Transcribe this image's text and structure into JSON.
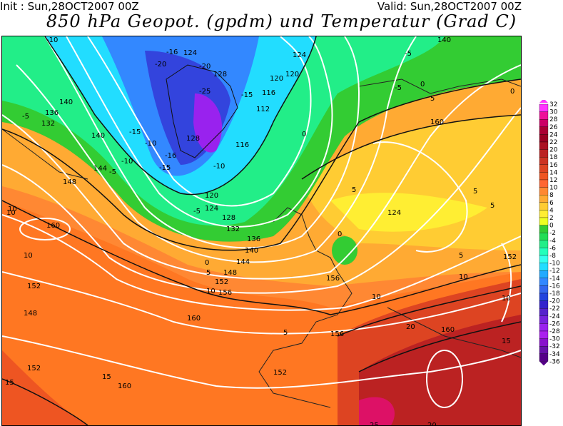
{
  "header": {
    "init": "Init : Sun,28OCT2007 00Z",
    "valid": "Valid: Sun,28OCT2007 00Z",
    "title": "850 hPa Geopot. (gpdm) und Temperatur (Grad C)"
  },
  "legend": {
    "labels": [
      "32",
      "30",
      "28",
      "26",
      "24",
      "22",
      "20",
      "18",
      "16",
      "14",
      "12",
      "10",
      "8",
      "6",
      "4",
      "2",
      "0",
      "-2",
      "-4",
      "-6",
      "-8",
      "-10",
      "-12",
      "-14",
      "-16",
      "-18",
      "-20",
      "-22",
      "-24",
      "-26",
      "-28",
      "-30",
      "-32",
      "-34",
      "-36"
    ],
    "colors": [
      "#ff33ff",
      "#ee1199",
      "#cc0066",
      "#aa0033",
      "#990022",
      "#aa1122",
      "#bb2222",
      "#cc3322",
      "#dd4422",
      "#ee5522",
      "#ff6633",
      "#ff8833",
      "#ffaa33",
      "#ffcc33",
      "#ffee33",
      "#eeff22",
      "#33cc33",
      "#22dd55",
      "#22ee88",
      "#22ffbb",
      "#33ffee",
      "#22ddff",
      "#22aaff",
      "#3388ff",
      "#3366ee",
      "#2244dd",
      "#3322cc",
      "#5522cc",
      "#7722dd",
      "#9922ee",
      "#aa22ee",
      "#8811cc",
      "#6611aa",
      "#550088"
    ]
  },
  "map": {
    "geopotential_labels": [
      "140",
      "136",
      "132",
      "140",
      "144",
      "148",
      "160",
      "152",
      "148",
      "152",
      "160",
      "124",
      "120",
      "128",
      "132",
      "136",
      "140",
      "144",
      "148",
      "152",
      "156",
      "160",
      "156",
      "156",
      "152",
      "160",
      "152",
      "160",
      "124",
      "120",
      "116",
      "112",
      "116",
      "128",
      "128",
      "124",
      "120",
      "140",
      "124"
    ],
    "temperature_labels": [
      "-10",
      "-5",
      "-5",
      "-10",
      "-15",
      "-10",
      "-15",
      "-20",
      "-16",
      "-20",
      "-25",
      "-15",
      "-16",
      "-10",
      "-5",
      "0",
      "5",
      "10",
      "10",
      "10",
      "15",
      "15",
      "10",
      "5",
      "0",
      "5",
      "5",
      "10",
      "10",
      "15",
      "20",
      "20",
      "25",
      "-5",
      "-5",
      "0",
      "5",
      "0",
      "5",
      "0",
      "5",
      "10"
    ]
  }
}
